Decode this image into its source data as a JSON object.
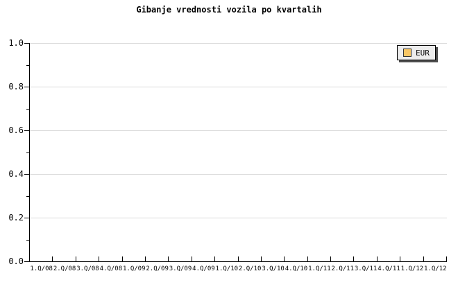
{
  "chart_data": {
    "type": "line",
    "title": "Gibanje vrednosti vozila po kvartalih",
    "categories": [
      "1.Q/08",
      "2.Q/08",
      "3.Q/08",
      "4.Q/08",
      "1.Q/09",
      "2.Q/09",
      "3.Q/09",
      "4.Q/09",
      "1.Q/10",
      "2.Q/10",
      "3.Q/10",
      "4.Q/10",
      "1.Q/11",
      "2.Q/11",
      "3.Q/11",
      "4.Q/11",
      "1.Q/12",
      "1.Q/12"
    ],
    "series": [
      {
        "name": "EUR",
        "values": []
      }
    ],
    "xlabel": "",
    "ylabel": "",
    "ylim": [
      0,
      1
    ],
    "y_major_ticks": [
      0,
      0.2,
      0.4,
      0.6,
      0.8,
      1.0
    ],
    "y_tick_labels": [
      "0.0",
      "0.2",
      "0.4",
      "0.6",
      "0.8",
      "1.0"
    ],
    "y_minor_tick_step": 0.1,
    "grid": "horizontal-major-only",
    "legend_position": "top-right",
    "plot_is_empty": true
  },
  "legend": {
    "label": "EUR"
  },
  "colors": {
    "background": "#ffffff",
    "text": "#000000",
    "axis_line": "#000000",
    "grid_line": "#d9d9d9",
    "legend_background": "#ededed",
    "legend_border": "#000000",
    "legend_shadow": "#4d4d4d",
    "swatch_border": "#333333",
    "series_eur_swatch": "#f8c664"
  }
}
